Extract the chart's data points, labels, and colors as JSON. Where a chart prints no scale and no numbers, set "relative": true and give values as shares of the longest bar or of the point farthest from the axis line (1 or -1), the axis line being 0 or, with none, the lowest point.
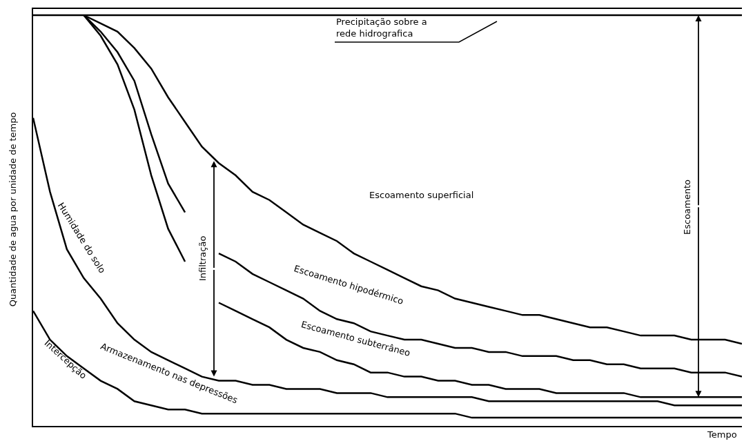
{
  "chart_data": {
    "type": "line",
    "relative": true,
    "xlabel": "Tempo",
    "ylabel": "Quantidade de agua por unidade de tempo",
    "categories": [
      null,
      null,
      null,
      null,
      null,
      null,
      null,
      null,
      null,
      null,
      null,
      null,
      null,
      null,
      null,
      null,
      null,
      null,
      null,
      null,
      null,
      null,
      null,
      null,
      null,
      null,
      null,
      null,
      null,
      null,
      null,
      null,
      null,
      null,
      null,
      null,
      null,
      null,
      null,
      null,
      null,
      null,
      null
    ],
    "series": [
      {
        "color": "#000000",
        "values": [
          1,
          1,
          1,
          1,
          1,
          1,
          1,
          1,
          1,
          1,
          1,
          1,
          1,
          1,
          1,
          1,
          1,
          1,
          1,
          1,
          1,
          1,
          1,
          1,
          1,
          1,
          1,
          1,
          1,
          1,
          1,
          1,
          1,
          1,
          1,
          1,
          1,
          1,
          1,
          1,
          1,
          1,
          1
        ]
      },
      {
        "color": "#000000",
        "values": [
          null,
          null,
          null,
          1.0,
          0.98,
          0.96,
          0.92,
          0.87,
          0.8,
          0.74,
          0.68,
          0.64,
          0.61,
          0.57,
          0.55,
          0.52,
          0.49,
          0.47,
          0.45,
          0.42,
          0.4,
          0.38,
          0.36,
          0.34,
          0.33,
          0.31,
          0.3,
          0.29,
          0.28,
          0.27,
          0.27,
          0.26,
          0.25,
          0.24,
          0.24,
          0.23,
          0.22,
          0.22,
          0.22,
          0.21,
          0.21,
          0.21,
          0.2
        ]
      },
      {
        "color": "#000000",
        "values": [
          null,
          null,
          null,
          1.0,
          0.96,
          0.91,
          0.84,
          0.71,
          0.59,
          0.52,
          null,
          null,
          null,
          null,
          null,
          null,
          null,
          null,
          null,
          null,
          null,
          null,
          null,
          null,
          null,
          null,
          null,
          null,
          null,
          null,
          null,
          null,
          null,
          null,
          null,
          null,
          null,
          null,
          null,
          null,
          null,
          null,
          null
        ]
      },
      {
        "color": "#000000",
        "values": [
          null,
          null,
          null,
          1.0,
          0.95,
          0.88,
          0.77,
          0.61,
          0.48,
          0.4,
          null,
          null,
          null,
          null,
          null,
          null,
          null,
          null,
          null,
          null,
          null,
          null,
          null,
          null,
          null,
          null,
          null,
          null,
          null,
          null,
          null,
          null,
          null,
          null,
          null,
          null,
          null,
          null,
          null,
          null,
          null,
          null,
          null
        ]
      },
      {
        "color": "#000000",
        "values": [
          null,
          null,
          null,
          null,
          null,
          null,
          null,
          null,
          null,
          null,
          null,
          0.42,
          0.4,
          0.37,
          0.35,
          0.33,
          0.31,
          0.28,
          0.26,
          0.25,
          0.23,
          0.22,
          0.21,
          0.21,
          0.2,
          0.19,
          0.19,
          0.18,
          0.18,
          0.17,
          0.17,
          0.17,
          0.16,
          0.16,
          0.15,
          0.15,
          0.14,
          0.14,
          0.14,
          0.13,
          0.13,
          0.13,
          0.12
        ]
      },
      {
        "color": "#000000",
        "values": [
          null,
          null,
          null,
          null,
          null,
          null,
          null,
          null,
          null,
          null,
          null,
          0.3,
          0.28,
          0.26,
          0.24,
          0.21,
          0.19,
          0.18,
          0.16,
          0.15,
          0.13,
          0.13,
          0.12,
          0.12,
          0.11,
          0.11,
          0.1,
          0.1,
          0.09,
          0.09,
          0.09,
          0.08,
          0.08,
          0.08,
          0.08,
          0.08,
          0.07,
          0.07,
          0.07,
          0.07,
          0.07,
          0.07,
          0.07
        ]
      },
      {
        "color": "#000000",
        "values": [
          0.75,
          0.57,
          0.43,
          0.36,
          0.31,
          0.25,
          0.21,
          0.18,
          0.16,
          0.14,
          0.12,
          0.11,
          0.11,
          0.1,
          0.1,
          0.09,
          0.09,
          0.09,
          0.08,
          0.08,
          0.08,
          0.07,
          0.07,
          0.07,
          0.07,
          0.07,
          0.07,
          0.06,
          0.06,
          0.06,
          0.06,
          0.06,
          0.06,
          0.06,
          0.06,
          0.06,
          0.06,
          0.06,
          0.05,
          0.05,
          0.05,
          0.05,
          0.05
        ]
      },
      {
        "color": "#000000",
        "values": [
          0.28,
          0.21,
          0.17,
          0.14,
          0.11,
          0.09,
          0.06,
          0.05,
          0.04,
          0.04,
          0.03,
          0.03,
          0.03,
          0.03,
          0.03,
          0.03,
          0.03,
          0.03,
          0.03,
          0.03,
          0.03,
          0.03,
          0.03,
          0.03,
          0.03,
          0.03,
          0.02,
          0.02,
          0.02,
          0.02,
          0.02,
          0.02,
          0.02,
          0.02,
          0.02,
          0.02,
          0.02,
          0.02,
          0.02,
          0.02,
          0.02,
          0.02,
          0.02
        ]
      }
    ],
    "annotations": [
      "Precipitação sobre a\nrede hidrografica",
      "Escoamento superficial",
      "Escoamento hipodérmico",
      "Escoamento subterrâneo",
      "Humidade do solo",
      "Armazenamento nas depressões",
      "Intercepção",
      "Infiltração",
      "Escoamento"
    ]
  }
}
